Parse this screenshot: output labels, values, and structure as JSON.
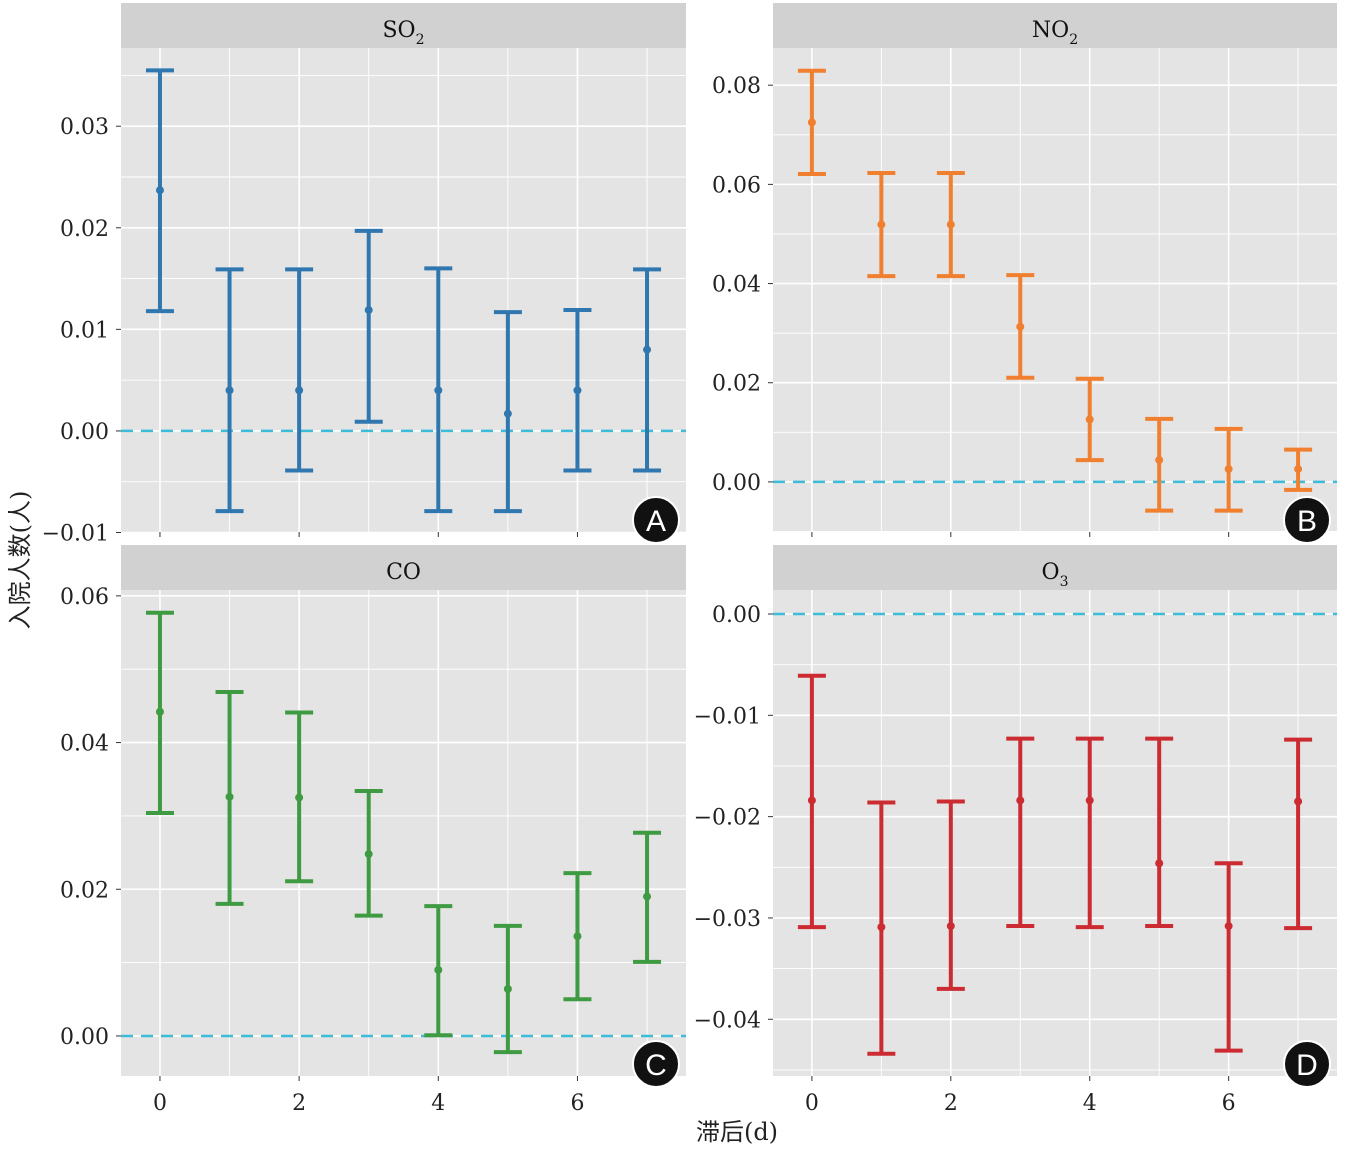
{
  "chart_data": [
    {
      "type": "errorbar",
      "panel": "A",
      "title": "SO",
      "title_sub": "2",
      "color": "#2f77ae",
      "x": [
        0,
        1,
        2,
        3,
        4,
        5,
        6,
        7
      ],
      "xticks": [
        0,
        2,
        4,
        6
      ],
      "xlim": [
        -0.56,
        7.56
      ],
      "ylim": [
        -0.00995,
        0.0377
      ],
      "yticks": [
        -0.01,
        0.0,
        0.01,
        0.02,
        0.03
      ],
      "ytick_labels": [
        "−0.01",
        "0.00",
        "0.01",
        "0.02",
        "0.03"
      ],
      "estimate": [
        0.0237,
        0.004,
        0.004,
        0.0119,
        0.004,
        0.0017,
        0.004,
        0.008
      ],
      "lower": [
        0.0118,
        -0.0079,
        -0.0039,
        0.0009,
        -0.0079,
        -0.0079,
        -0.0039,
        -0.0039
      ],
      "upper": [
        0.0355,
        0.0159,
        0.0159,
        0.0197,
        0.016,
        0.0117,
        0.0119,
        0.0159
      ],
      "reference_line": 0
    },
    {
      "type": "errorbar",
      "panel": "B",
      "title": "NO",
      "title_sub": "2",
      "color": "#f07f2f",
      "x": [
        0,
        1,
        2,
        3,
        4,
        5,
        6,
        7
      ],
      "xticks": [
        0,
        2,
        4,
        6
      ],
      "xlim": [
        -0.56,
        7.56
      ],
      "ylim": [
        -0.0101,
        0.0875
      ],
      "yticks": [
        0.0,
        0.02,
        0.04,
        0.06,
        0.08
      ],
      "ytick_labels": [
        "0.00",
        "0.02",
        "0.04",
        "0.06",
        "0.08"
      ],
      "estimate": [
        0.0725,
        0.0519,
        0.0519,
        0.0313,
        0.0126,
        0.0044,
        0.0026,
        0.0026
      ],
      "lower": [
        0.0621,
        0.0415,
        0.0415,
        0.021,
        0.0044,
        -0.0058,
        -0.0058,
        -0.0016
      ],
      "upper": [
        0.0829,
        0.0623,
        0.0623,
        0.0417,
        0.0208,
        0.0127,
        0.0107,
        0.0065
      ],
      "reference_line": 0
    },
    {
      "type": "errorbar",
      "panel": "C",
      "title": "CO",
      "title_sub": "",
      "color": "#3f9b41",
      "x": [
        0,
        1,
        2,
        3,
        4,
        5,
        6,
        7
      ],
      "xticks": [
        0,
        2,
        4,
        6
      ],
      "xlim": [
        -0.56,
        7.56
      ],
      "ylim": [
        -0.00546,
        0.0608
      ],
      "yticks": [
        0.0,
        0.02,
        0.04,
        0.06
      ],
      "ytick_labels": [
        "0.00",
        "0.02",
        "0.04",
        "0.06"
      ],
      "estimate": [
        0.0442,
        0.0326,
        0.0325,
        0.0248,
        0.009,
        0.0064,
        0.0136,
        0.019
      ],
      "lower": [
        0.0304,
        0.018,
        0.0211,
        0.0164,
        0.0001,
        -0.0022,
        0.005,
        0.0101
      ],
      "upper": [
        0.0577,
        0.0469,
        0.0441,
        0.0334,
        0.0177,
        0.015,
        0.0222,
        0.0277
      ],
      "reference_line": 0
    },
    {
      "type": "errorbar",
      "panel": "D",
      "title": "O",
      "title_sub": "3",
      "color": "#cb2b31",
      "x": [
        0,
        1,
        2,
        3,
        4,
        5,
        6,
        7
      ],
      "xticks": [
        0,
        2,
        4,
        6
      ],
      "xlim": [
        -0.56,
        7.56
      ],
      "ylim": [
        -0.0456,
        0.00237
      ],
      "yticks": [
        -0.04,
        -0.03,
        -0.02,
        -0.01,
        0.0
      ],
      "ytick_labels": [
        "−0.04",
        "−0.03",
        "−0.02",
        "−0.01",
        "0.00"
      ],
      "estimate": [
        -0.0184,
        -0.0309,
        -0.0308,
        -0.0184,
        -0.0184,
        -0.0246,
        -0.0308,
        -0.0185
      ],
      "lower": [
        -0.0309,
        -0.0434,
        -0.037,
        -0.0308,
        -0.0309,
        -0.0308,
        -0.0431,
        -0.031
      ],
      "upper": [
        -0.0061,
        -0.0186,
        -0.0185,
        -0.0123,
        -0.0123,
        -0.0123,
        -0.0246,
        -0.0124
      ],
      "reference_line": 0
    }
  ],
  "labels": {
    "ylabel": "入院人数(人)",
    "xlabel": "滞后(d)"
  },
  "colors": {
    "panel_bg": "#e4e4e4",
    "strip_bg": "#d1d1d1",
    "grid": "#ffffff",
    "reference_line": "#3cbcd9"
  }
}
